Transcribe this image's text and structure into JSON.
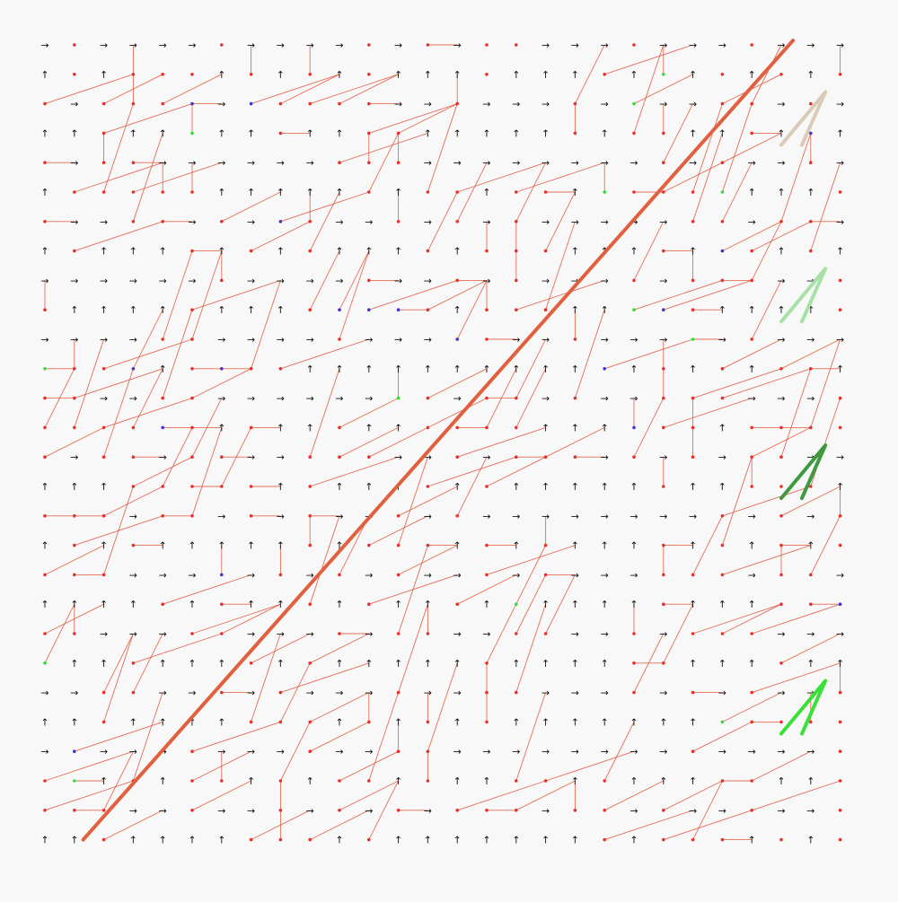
{
  "diagram": {
    "grid_size": 28,
    "glyphs": {
      "right": "→",
      "up": "↑"
    },
    "colors": {
      "background": "#f8f8f8",
      "arrow": "#111111",
      "node": "#e8302a",
      "edge": "#e2553b",
      "node_alt_blue": "#4433cc",
      "node_alt_green": "#33dd33",
      "main_path": "#e06040"
    },
    "highlight_segments": [
      {
        "color": "#d9cbb8"
      },
      {
        "color": "#a8e0a8"
      },
      {
        "color": "#3f9a3f"
      },
      {
        "color": "#38e038"
      }
    ]
  }
}
